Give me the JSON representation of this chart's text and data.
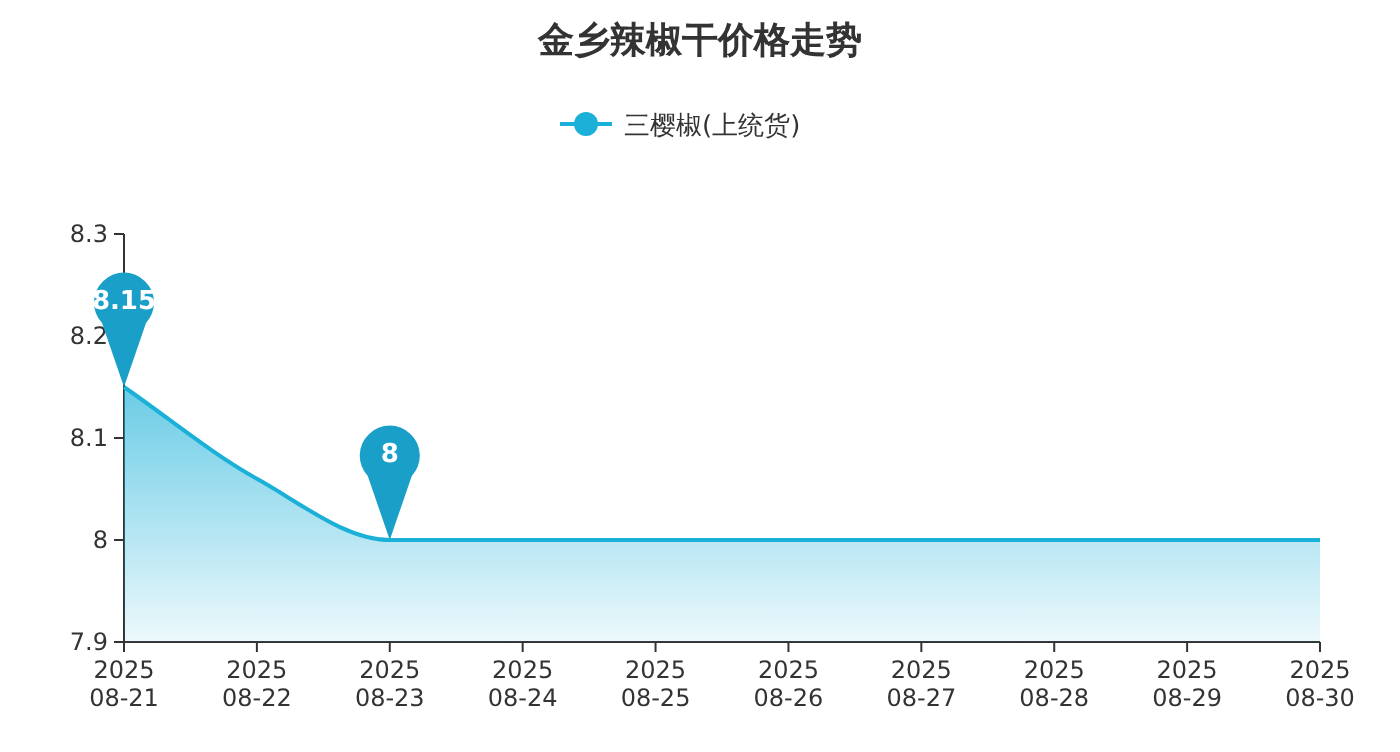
{
  "chart_data": {
    "type": "area",
    "title": "金乡辣椒干价格走势",
    "categories": [
      "2025\n08-21",
      "2025\n08-22",
      "2025\n08-23",
      "2025\n08-24",
      "2025\n08-25",
      "2025\n08-26",
      "2025\n08-27",
      "2025\n08-28",
      "2025\n08-29",
      "2025\n08-30"
    ],
    "series": [
      {
        "name": "三樱椒(上统货)",
        "color": "#1ab0d8",
        "values": [
          8.15,
          8.06,
          8,
          8,
          8,
          8,
          8,
          8,
          8,
          8
        ]
      }
    ],
    "ylim": [
      7.9,
      8.3
    ],
    "yticks": [
      7.9,
      8,
      8.1,
      8.2,
      8.3
    ],
    "legend": "top",
    "annotations": [
      {
        "text": "8.15",
        "x": "2025\n08-21",
        "y": 8.15
      },
      {
        "text": "8",
        "x": "2025\n08-23",
        "y": 8
      }
    ]
  }
}
